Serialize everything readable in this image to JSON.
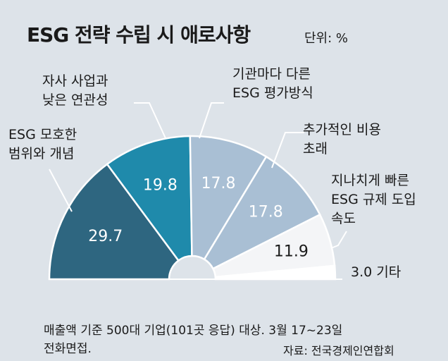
{
  "title": "ESG 전략 수립 시 애로사항",
  "unit": "단위: %",
  "note_line1": "매출액 기준 500대 기업(101곳 응답) 대상. 3월 17~23일",
  "note_line2": "전화면접.",
  "source": "자료: 전국경제인연합회",
  "chart_data": {
    "type": "pie",
    "shape": "semicircle",
    "categories": [
      "ESG 모호한 범위와 개념",
      "자사 사업과 낮은 연관성",
      "기관마다 다른 ESG 평가방식",
      "추가적인 비용 초래",
      "지나치게 빠른 ESG 규제 도입 속도",
      "기타"
    ],
    "label_lines": [
      [
        "ESG 모호한",
        "범위와 개념"
      ],
      [
        "자사 사업과",
        "낮은 연관성"
      ],
      [
        "기관마다 다른",
        "ESG 평가방식"
      ],
      [
        "추가적인 비용",
        "초래"
      ],
      [
        "지나치게 빠른",
        "ESG 규제 도입",
        "속도"
      ],
      [
        "기타"
      ]
    ],
    "values": [
      29.7,
      19.8,
      17.8,
      17.8,
      11.9,
      3.0
    ],
    "value_labels": [
      "29.7",
      "19.8",
      "17.8",
      "17.8",
      "11.9",
      "3.0"
    ],
    "colors": [
      "#2e6680",
      "#1f8aab",
      "#a9bfd4",
      "#a9bfd4",
      "#f4f5f7",
      "#ffffff"
    ],
    "value_text_colors": [
      "#ffffff",
      "#ffffff",
      "#ffffff",
      "#ffffff",
      "#1a1a1a",
      "#1a1a1a"
    ]
  }
}
